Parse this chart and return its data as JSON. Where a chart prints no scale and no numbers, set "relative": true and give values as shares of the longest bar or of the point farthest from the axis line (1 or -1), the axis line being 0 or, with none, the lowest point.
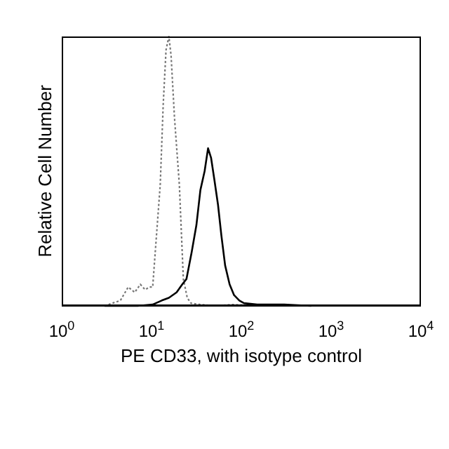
{
  "chart_data": {
    "type": "line",
    "xlabel": "PE CD33, with isotype control",
    "ylabel": "Relative Cell Number",
    "relative": true,
    "log": "x",
    "xlim": [
      1,
      10000
    ],
    "xticks": [
      {
        "value": 1,
        "label": "10$^{0}$"
      },
      {
        "value": 10,
        "label": "10$^{1}$"
      },
      {
        "value": 100,
        "label": "10$^{2}$"
      },
      {
        "value": 1000,
        "label": "10$^{3}$"
      },
      {
        "value": 10000,
        "label": "10$^{4}$"
      }
    ],
    "marker": "none",
    "series": [
      {
        "color": "#777777",
        "line_style": "dotted",
        "x": [
          3,
          4.5,
          5.5,
          6.5,
          7.5,
          8.5,
          9.5,
          10.3,
          11,
          12.5,
          13.5,
          14.5,
          15.6,
          16.5,
          18,
          20.4,
          22.6,
          25,
          27.5,
          35,
          50,
          80,
          150,
          400
        ],
        "values": [
          0,
          0.02,
          0.07,
          0.05,
          0.08,
          0.06,
          0.07,
          0.07,
          0.2,
          0.45,
          0.75,
          0.95,
          1,
          0.93,
          0.7,
          0.45,
          0.1,
          0.03,
          0.01,
          0.005,
          0,
          0.005,
          0,
          0
        ]
      },
      {
        "color": "#000000",
        "line_style": "solid",
        "x": [
          3,
          7,
          10.3,
          13,
          15.6,
          19,
          22,
          24.5,
          28,
          31.6,
          35,
          39,
          42.6,
          46,
          50,
          55,
          60,
          66,
          74,
          83,
          95,
          107,
          150,
          300,
          600
        ],
        "values": [
          0,
          0,
          0.005,
          0.02,
          0.03,
          0.05,
          0.08,
          0.1,
          0.2,
          0.3,
          0.43,
          0.5,
          0.585,
          0.55,
          0.47,
          0.375,
          0.26,
          0.15,
          0.08,
          0.04,
          0.02,
          0.01,
          0.005,
          0.005,
          0
        ]
      }
    ]
  }
}
